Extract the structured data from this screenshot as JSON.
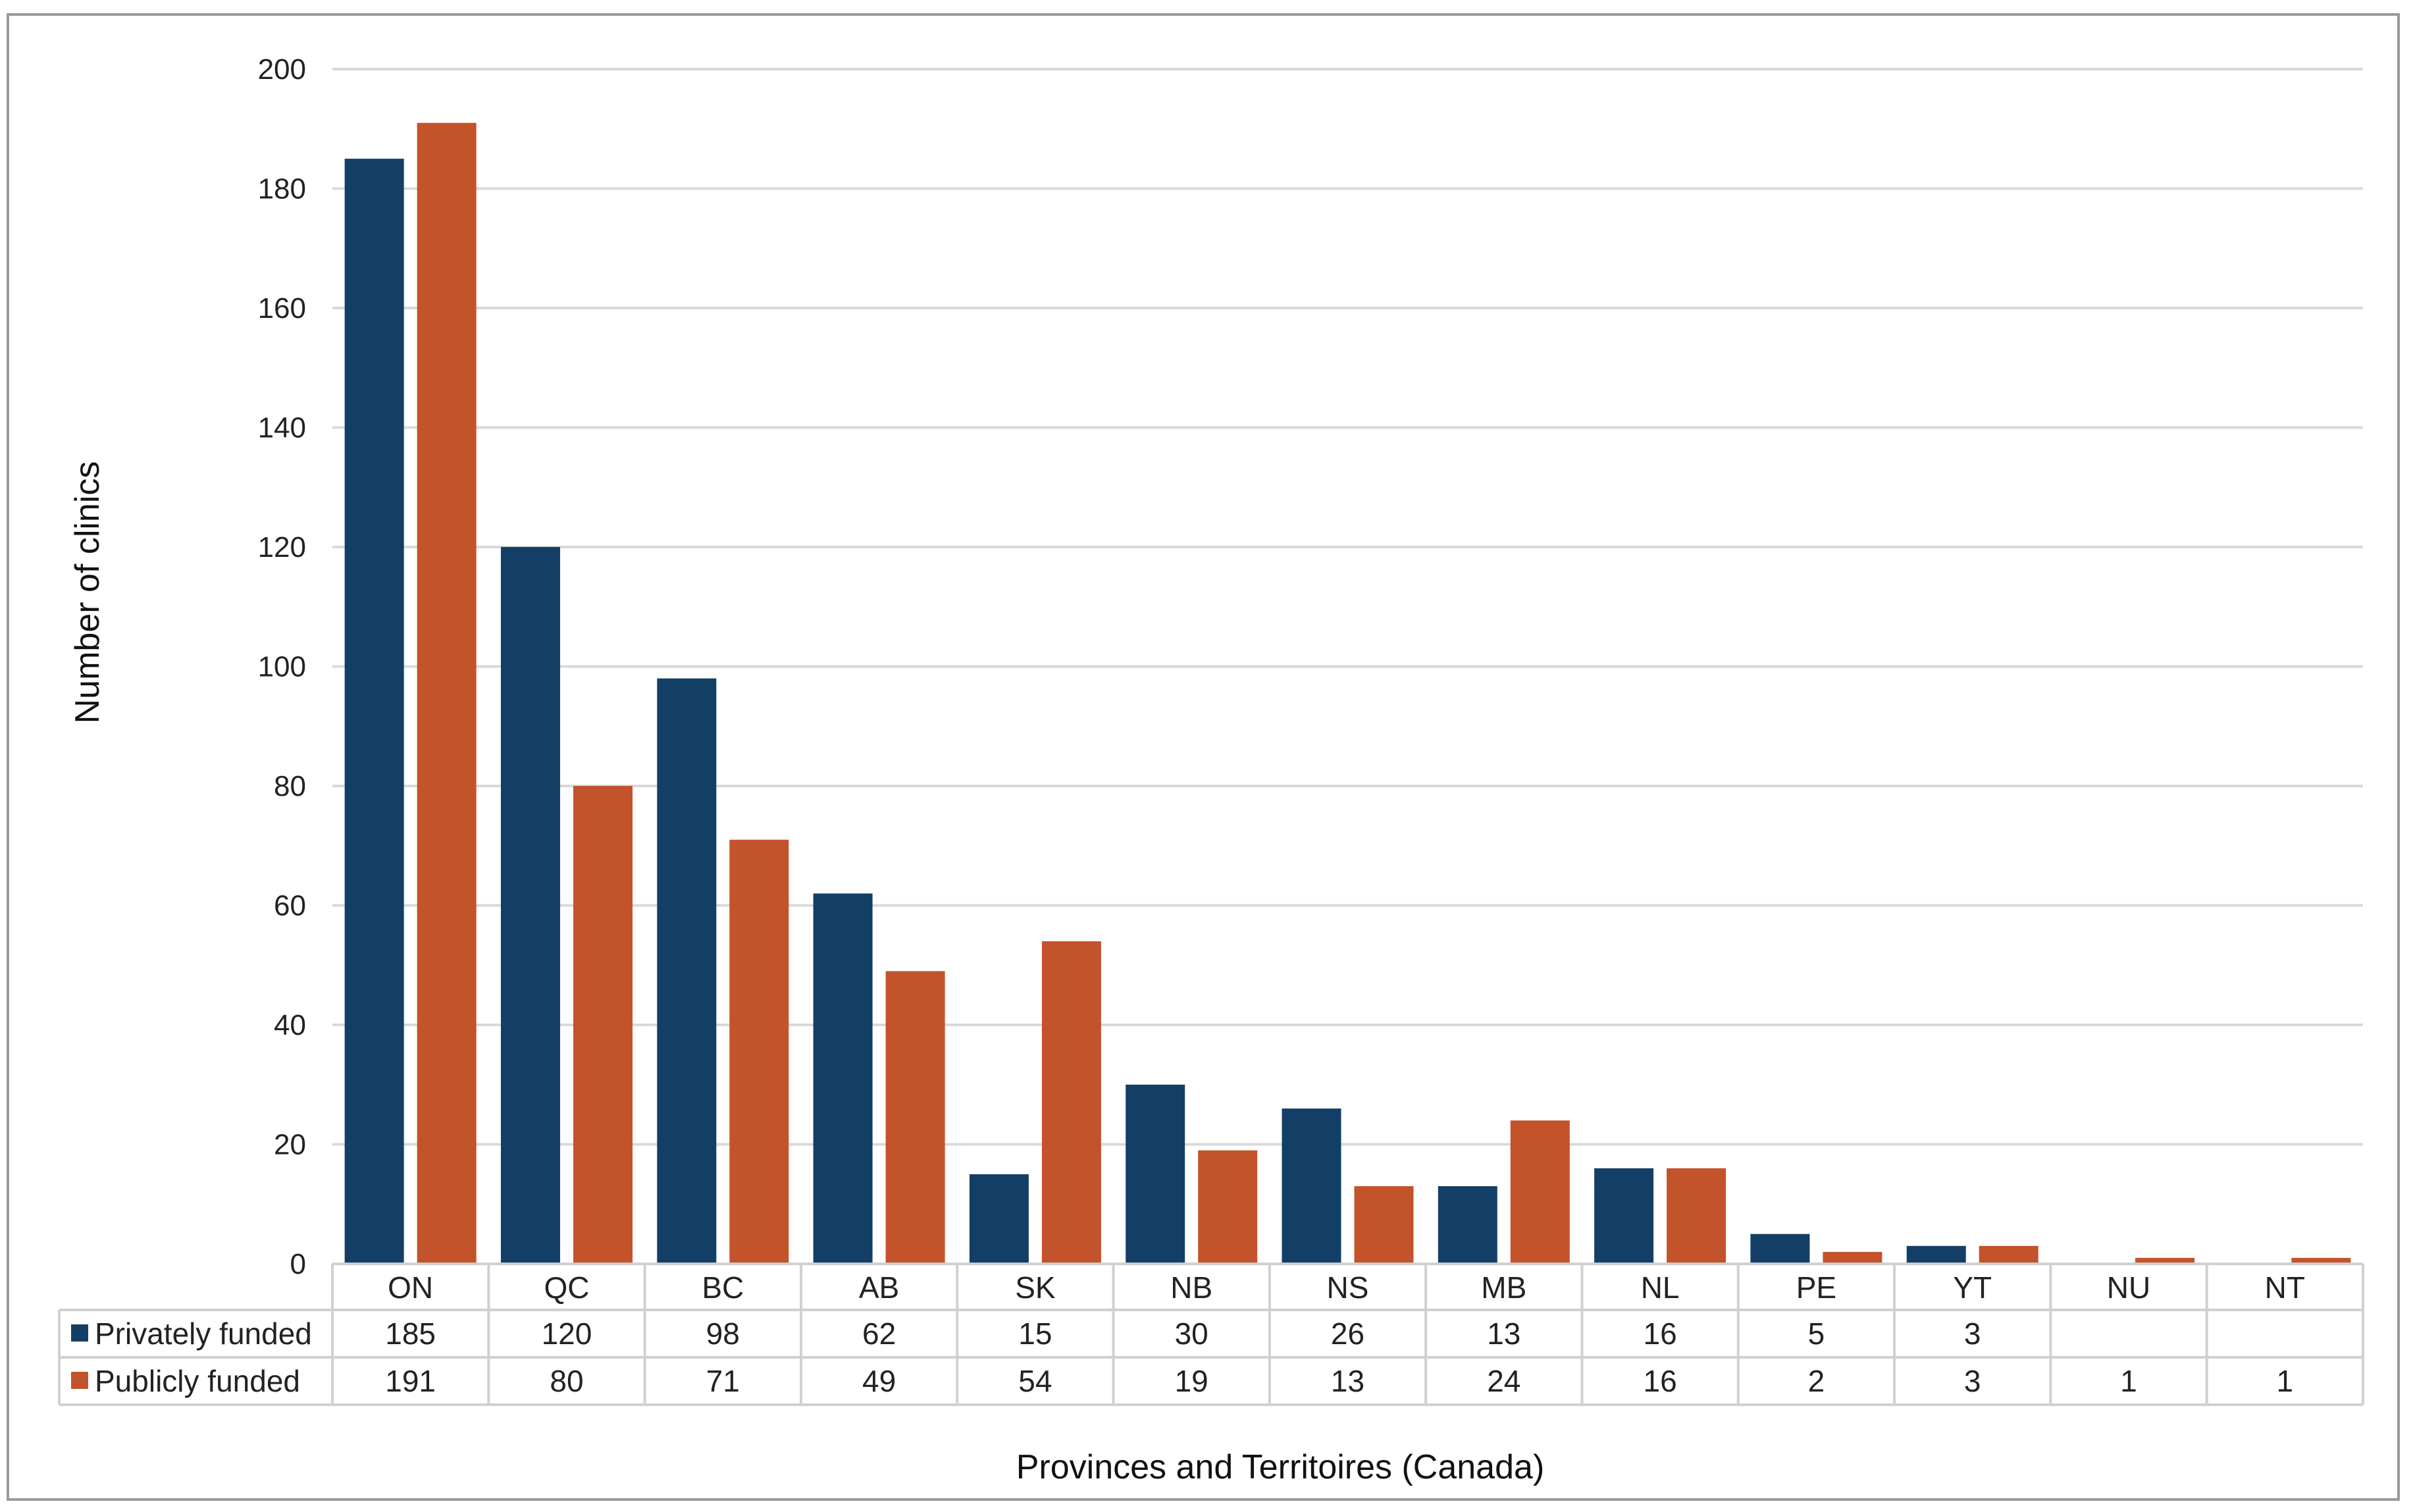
{
  "chart_data": {
    "type": "bar",
    "title": "",
    "xlabel": "Provinces and Territoires (Canada)",
    "ylabel": "Number of clinics",
    "ylim": [
      0,
      200
    ],
    "yticks": [
      0,
      20,
      40,
      60,
      80,
      100,
      120,
      140,
      160,
      180,
      200
    ],
    "grid": true,
    "legend": "data-table-left",
    "categories": [
      "ON",
      "QC",
      "BC",
      "AB",
      "SK",
      "NB",
      "NS",
      "MB",
      "NL",
      "PE",
      "YT",
      "NU",
      "NT"
    ],
    "series": [
      {
        "name": "Privately funded",
        "color": "#133f66",
        "values": [
          185,
          120,
          98,
          62,
          15,
          30,
          26,
          13,
          16,
          5,
          3,
          null,
          null
        ]
      },
      {
        "name": "Publicly funded",
        "color": "#c3532a",
        "values": [
          191,
          80,
          71,
          49,
          54,
          19,
          13,
          24,
          16,
          2,
          3,
          1,
          1
        ]
      }
    ],
    "data_table": true
  },
  "colors": {
    "grid": "#d9d9d9",
    "table_border": "#d0d0d0",
    "frame": "#9a9a9a"
  }
}
